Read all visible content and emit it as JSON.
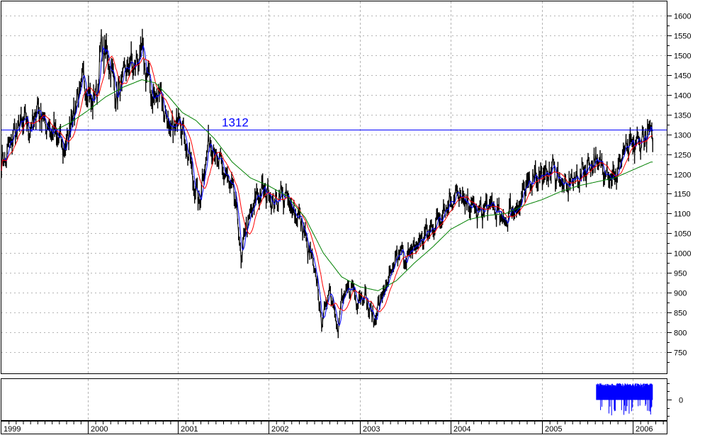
{
  "colors": {
    "background": "#ffffff",
    "grid": "#b4b4b4",
    "price": "#000000",
    "ma_short": "#0000ff",
    "ma_mid": "#ff0000",
    "ma_long": "#008000",
    "hline": "#0000ff",
    "indicator": "#0000ff"
  },
  "chart_data": [
    {
      "type": "line",
      "title": "",
      "xlabel": "",
      "ylabel": "",
      "x_tick_labels": [
        "1999",
        "2000",
        "2001",
        "2002",
        "2003",
        "2004",
        "2005",
        "2006"
      ],
      "y_tick_labels": [
        "1600",
        "1550",
        "1500",
        "1450",
        "1400",
        "1350",
        "1300",
        "1250",
        "1200",
        "1150",
        "1100",
        "1050",
        "1000",
        "950",
        "900",
        "850",
        "800",
        "750"
      ],
      "ylim": [
        700,
        1625
      ],
      "xlim": [
        1999.0,
        2006.22
      ],
      "grid": true,
      "y_axis_side": "right",
      "horizontal_line": {
        "value": 1312,
        "label": "1312"
      },
      "price_anchors": [
        [
          1999.0,
          1230
        ],
        [
          1999.05,
          1240
        ],
        [
          1999.12,
          1290
        ],
        [
          1999.2,
          1320
        ],
        [
          1999.28,
          1335
        ],
        [
          1999.34,
          1310
        ],
        [
          1999.42,
          1370
        ],
        [
          1999.5,
          1330
        ],
        [
          1999.58,
          1310
        ],
        [
          1999.66,
          1290
        ],
        [
          1999.74,
          1260
        ],
        [
          1999.8,
          1330
        ],
        [
          1999.88,
          1390
        ],
        [
          1999.95,
          1440
        ],
        [
          2000.0,
          1410
        ],
        [
          2000.05,
          1380
        ],
        [
          2000.1,
          1410
        ],
        [
          2000.15,
          1520
        ],
        [
          2000.22,
          1500
        ],
        [
          2000.28,
          1440
        ],
        [
          2000.33,
          1390
        ],
        [
          2000.4,
          1450
        ],
        [
          2000.46,
          1480
        ],
        [
          2000.53,
          1470
        ],
        [
          2000.6,
          1510
        ],
        [
          2000.67,
          1440
        ],
        [
          2000.74,
          1380
        ],
        [
          2000.8,
          1420
        ],
        [
          2000.86,
          1350
        ],
        [
          2000.92,
          1300
        ],
        [
          2000.97,
          1320
        ],
        [
          2001.02,
          1360
        ],
        [
          2001.08,
          1280
        ],
        [
          2001.13,
          1240
        ],
        [
          2001.19,
          1160
        ],
        [
          2001.24,
          1130
        ],
        [
          2001.3,
          1230
        ],
        [
          2001.36,
          1290
        ],
        [
          2001.42,
          1240
        ],
        [
          2001.5,
          1210
        ],
        [
          2001.58,
          1170
        ],
        [
          2001.64,
          1130
        ],
        [
          2001.7,
          975
        ],
        [
          2001.74,
          1060
        ],
        [
          2001.8,
          1090
        ],
        [
          2001.86,
          1140
        ],
        [
          2001.92,
          1155
        ],
        [
          2002.0,
          1155
        ],
        [
          2002.06,
          1120
        ],
        [
          2002.12,
          1150
        ],
        [
          2002.18,
          1140
        ],
        [
          2002.24,
          1120
        ],
        [
          2002.3,
          1100
        ],
        [
          2002.36,
          1080
        ],
        [
          2002.42,
          1020
        ],
        [
          2002.48,
          980
        ],
        [
          2002.54,
          910
        ],
        [
          2002.58,
          820
        ],
        [
          2002.62,
          860
        ],
        [
          2002.66,
          910
        ],
        [
          2002.71,
          880
        ],
        [
          2002.76,
          800
        ],
        [
          2002.8,
          880
        ],
        [
          2002.86,
          900
        ],
        [
          2002.91,
          920
        ],
        [
          2002.97,
          880
        ],
        [
          2003.04,
          900
        ],
        [
          2003.1,
          860
        ],
        [
          2003.16,
          830
        ],
        [
          2003.22,
          880
        ],
        [
          2003.28,
          910
        ],
        [
          2003.34,
          940
        ],
        [
          2003.4,
          990
        ],
        [
          2003.46,
          1000
        ],
        [
          2003.52,
          985
        ],
        [
          2003.58,
          1010
        ],
        [
          2003.66,
          1030
        ],
        [
          2003.74,
          1050
        ],
        [
          2003.82,
          1070
        ],
        [
          2003.9,
          1100
        ],
        [
          2004.0,
          1135
        ],
        [
          2004.06,
          1150
        ],
        [
          2004.12,
          1135
        ],
        [
          2004.18,
          1120
        ],
        [
          2004.24,
          1120
        ],
        [
          2004.3,
          1100
        ],
        [
          2004.38,
          1115
        ],
        [
          2004.46,
          1120
        ],
        [
          2004.54,
          1090
        ],
        [
          2004.6,
          1080
        ],
        [
          2004.66,
          1110
        ],
        [
          2004.74,
          1115
        ],
        [
          2004.8,
          1150
        ],
        [
          2004.86,
          1180
        ],
        [
          2004.92,
          1200
        ],
        [
          2005.0,
          1190
        ],
        [
          2005.06,
          1200
        ],
        [
          2005.12,
          1215
        ],
        [
          2005.2,
          1185
        ],
        [
          2005.26,
          1160
        ],
        [
          2005.32,
          1185
        ],
        [
          2005.4,
          1190
        ],
        [
          2005.48,
          1215
        ],
        [
          2005.56,
          1230
        ],
        [
          2005.62,
          1225
        ],
        [
          2005.68,
          1220
        ],
        [
          2005.74,
          1200
        ],
        [
          2005.8,
          1185
        ],
        [
          2005.86,
          1230
        ],
        [
          2005.92,
          1260
        ],
        [
          2006.0,
          1270
        ],
        [
          2006.06,
          1280
        ],
        [
          2006.12,
          1290
        ],
        [
          2006.18,
          1300
        ],
        [
          2006.22,
          1305
        ]
      ],
      "long_ma_anchors": [
        [
          1999.62,
          1310
        ],
        [
          1999.8,
          1330
        ],
        [
          2000.0,
          1360
        ],
        [
          2000.2,
          1395
        ],
        [
          2000.4,
          1420
        ],
        [
          2000.6,
          1438
        ],
        [
          2000.75,
          1430
        ],
        [
          2000.9,
          1395
        ],
        [
          2001.05,
          1355
        ],
        [
          2001.2,
          1335
        ],
        [
          2001.4,
          1290
        ],
        [
          2001.6,
          1230
        ],
        [
          2001.8,
          1190
        ],
        [
          2002.0,
          1170
        ],
        [
          2002.2,
          1145
        ],
        [
          2002.4,
          1090
        ],
        [
          2002.6,
          1000
        ],
        [
          2002.8,
          940
        ],
        [
          2003.0,
          915
        ],
        [
          2003.2,
          905
        ],
        [
          2003.4,
          930
        ],
        [
          2003.6,
          975
        ],
        [
          2003.8,
          1015
        ],
        [
          2004.0,
          1060
        ],
        [
          2004.2,
          1085
        ],
        [
          2004.4,
          1095
        ],
        [
          2004.6,
          1100
        ],
        [
          2004.8,
          1120
        ],
        [
          2005.0,
          1135
        ],
        [
          2005.2,
          1155
        ],
        [
          2005.4,
          1170
        ],
        [
          2005.6,
          1180
        ],
        [
          2005.8,
          1190
        ],
        [
          2006.0,
          1210
        ],
        [
          2006.2,
          1230
        ]
      ],
      "series": [
        {
          "name": "",
          "role": "price",
          "color": "#000000"
        },
        {
          "name": "",
          "role": "short moving average",
          "color": "#0000ff"
        },
        {
          "name": "",
          "role": "medium moving average",
          "color": "#ff0000"
        },
        {
          "name": "",
          "role": "long moving average",
          "color": "#008000"
        }
      ]
    },
    {
      "type": "bar",
      "title": "",
      "y_tick_labels": [
        "0"
      ],
      "grid": true,
      "color": "#0000ff",
      "x_range": [
        2005.6,
        2006.22
      ],
      "note_values": "positive bars fill the band just above zero, scattered short negative spikes"
    }
  ]
}
